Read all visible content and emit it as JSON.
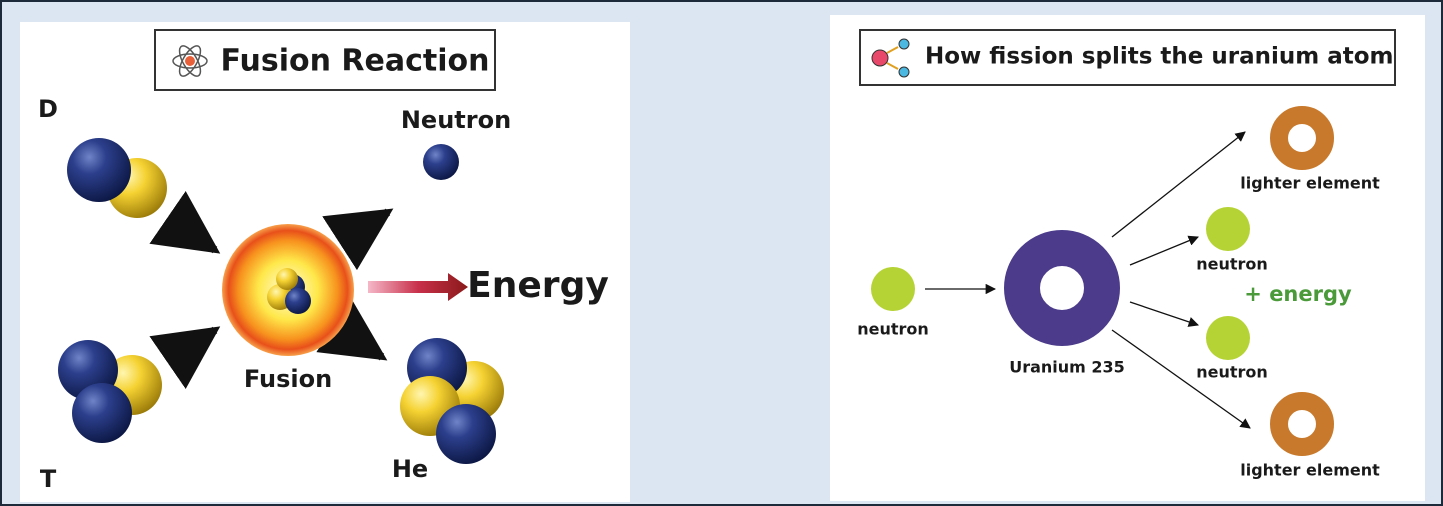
{
  "fusion": {
    "title": "Fusion Reaction",
    "labels": {
      "deuterium": "D",
      "tritium": "T",
      "neutron": "Neutron",
      "energy": "Energy",
      "fusion": "Fusion",
      "helium": "He"
    }
  },
  "fission": {
    "title": "How fission splits the uranium atom",
    "nodes": [
      {
        "label": "neutron"
      },
      {
        "label": "Uranium 235"
      },
      {
        "label": "lighter element"
      },
      {
        "label": "neutron"
      },
      {
        "label": "neutron"
      },
      {
        "label": "lighter element"
      }
    ],
    "energy_label": "+ energy"
  }
}
